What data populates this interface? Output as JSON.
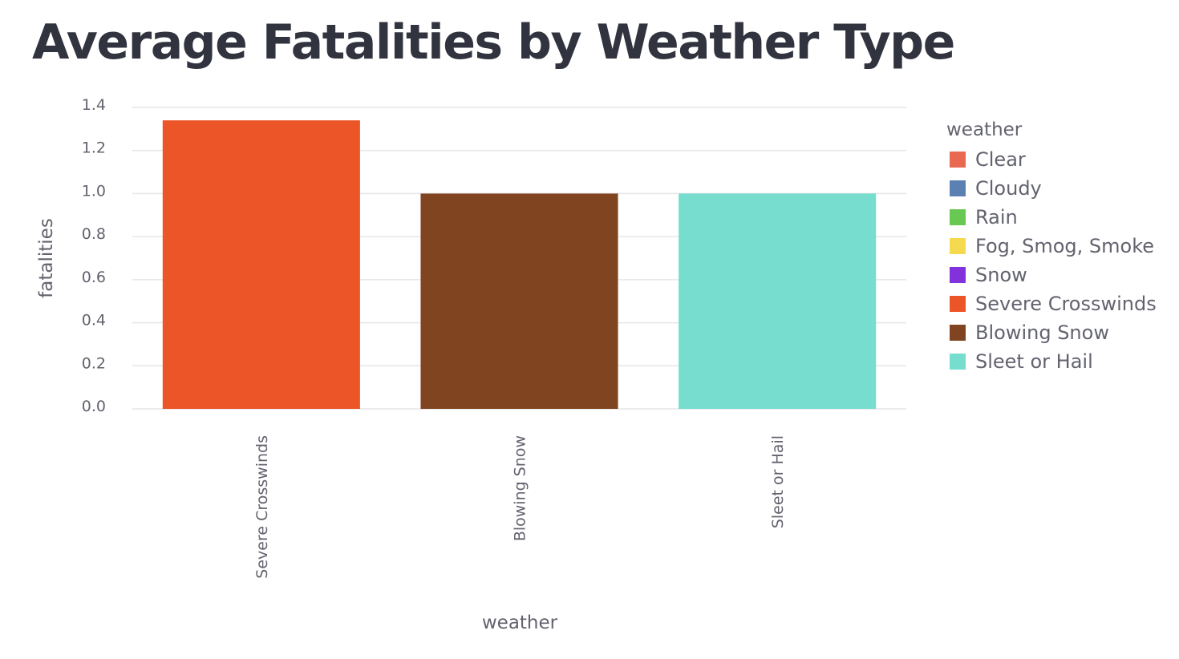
{
  "page": {
    "title": "Average Fatalities by Weather Type"
  },
  "chart_data": {
    "type": "bar",
    "title": "Average Fatalities by Weather Type",
    "xlabel": "weather",
    "ylabel": "fatalities",
    "categories": [
      "Severe Crosswinds",
      "Blowing Snow",
      "Sleet or Hail"
    ],
    "values": [
      1.34,
      1.0,
      1.0
    ],
    "bar_colors": [
      "#ec5528",
      "#804520",
      "#76ddcf"
    ],
    "ylim": [
      0,
      1.4
    ],
    "yticks": [
      0.0,
      0.2,
      0.4,
      0.6,
      0.8,
      1.0,
      1.2,
      1.4
    ],
    "ytick_labels": [
      "0.0",
      "0.2",
      "0.4",
      "0.6",
      "0.8",
      "1.0",
      "1.2",
      "1.4"
    ],
    "grid": "horizontal",
    "legend": {
      "title": "weather",
      "placement": "right",
      "entries": [
        {
          "label": "Clear",
          "color": "#e8694f"
        },
        {
          "label": "Cloudy",
          "color": "#5b80b2"
        },
        {
          "label": "Rain",
          "color": "#68c852"
        },
        {
          "label": "Fog, Smog, Smoke",
          "color": "#f5d94e"
        },
        {
          "label": "Snow",
          "color": "#8132da"
        },
        {
          "label": "Severe Crosswinds",
          "color": "#ec5528"
        },
        {
          "label": "Blowing Snow",
          "color": "#804520"
        },
        {
          "label": "Sleet or Hail",
          "color": "#76ddcf"
        }
      ]
    }
  }
}
